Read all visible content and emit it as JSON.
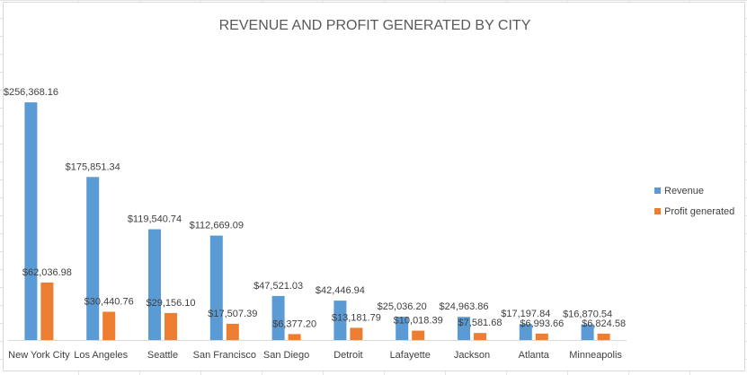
{
  "chart_data": {
    "type": "bar",
    "title": "REVENUE AND PROFIT GENERATED BY CITY",
    "categories": [
      "New York City",
      "Los Angeles",
      "Seattle",
      "San Francisco",
      "San Diego",
      "Detroit",
      "Lafayette",
      "Jackson",
      "Atlanta",
      "Minneapolis"
    ],
    "series": [
      {
        "name": "Revenue",
        "color": "#5b9bd5",
        "values": [
          256368.16,
          175851.34,
          119540.74,
          112669.09,
          47521.03,
          42446.94,
          25036.2,
          24963.86,
          17197.84,
          16870.54
        ],
        "labels": [
          "$256,368.16",
          "$175,851.34",
          "$119,540.74",
          "$112,669.09",
          "$47,521.03",
          "$42,446.94",
          "$25,036.20",
          "$24,963.86",
          "$17,197.84",
          "$16,870.54"
        ]
      },
      {
        "name": "Profit generated",
        "color": "#ed7d31",
        "values": [
          62036.98,
          30440.76,
          29156.1,
          17507.39,
          6377.2,
          13181.79,
          10018.39,
          7581.68,
          6993.66,
          6824.58
        ],
        "labels": [
          "$62,036.98",
          "$30,440.76",
          "$29,156.10",
          "$17,507.39",
          "$6,377.20",
          "$13,181.79",
          "$10,018.39",
          "$7,581.68",
          "$6,993.66",
          "$6,824.58"
        ]
      }
    ],
    "ylim": [
      0,
      300000
    ],
    "grid": false,
    "legend": "right",
    "axis_color": "#d9d9d9"
  }
}
